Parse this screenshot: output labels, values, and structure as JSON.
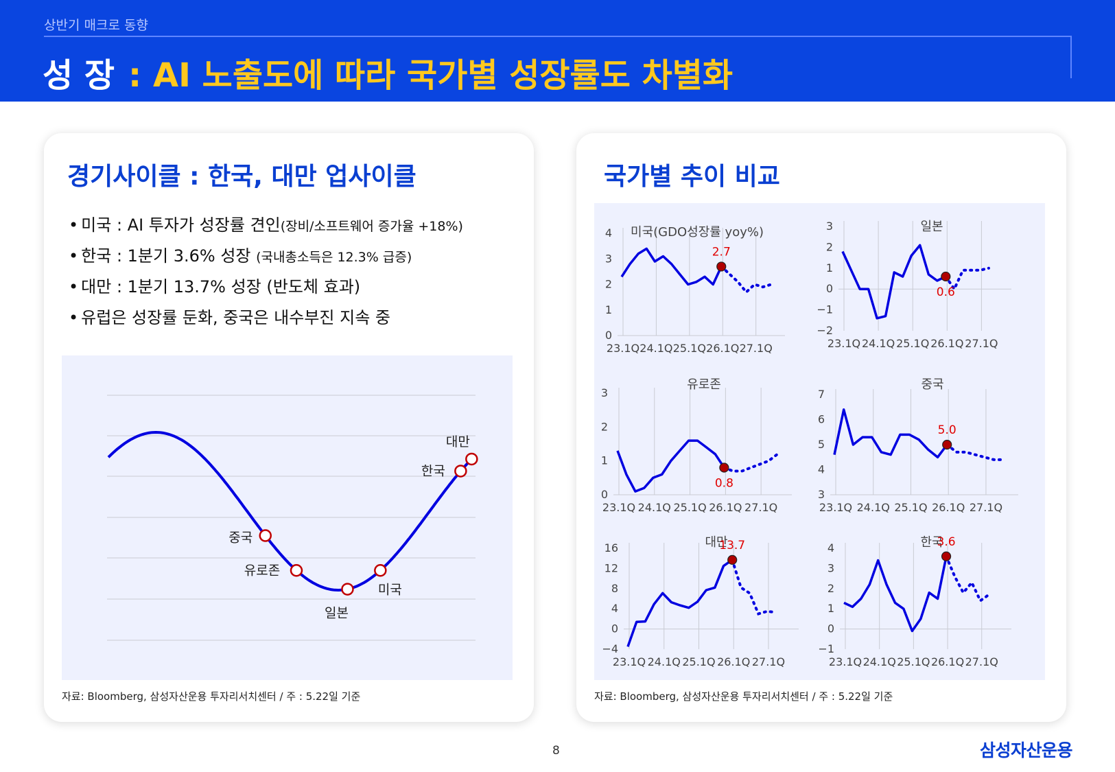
{
  "header": {
    "subtitle": "상반기 매크로 동향",
    "title_main": "성 장",
    "title_sub": ": AI 노출도에 따라 국가별 성장률도 차별화"
  },
  "left_card": {
    "title": "경기사이클 : 한국, 대만 업사이클",
    "bullets": [
      {
        "text": "미국 : AI 투자가 성장률 견인",
        "note": "(장비/소프트웨어 증가율 +18%)"
      },
      {
        "text": "한국 : 1분기 3.6% 성장",
        "note": "(국내총소득은 12.3% 급증)"
      },
      {
        "text": "대만 : 1분기 13.7% 성장 (반도체 효과)",
        "note": ""
      },
      {
        "text": "유럽은 성장률 둔화, 중국은 내수부진 지속 중",
        "note": ""
      }
    ],
    "source": "자료: Bloomberg, 삼성자산운용 투자리서치센터 / 주 : 5.22일 기준"
  },
  "right_card": {
    "title": "국가별 추이 비교",
    "source": "자료: Bloomberg, 삼성자산운용 투자리서치센터 / 주 : 5.22일 기준"
  },
  "footer": {
    "page": "8",
    "logo": "삼성자산운용"
  },
  "colors": {
    "header_bg": "#0a45e0",
    "title_accent": "#ffc81e",
    "line": "#0000e0",
    "marker": "#c00000",
    "panel_bg": "#eef1fe"
  },
  "chart_data": [
    {
      "type": "line",
      "title": "경기사이클",
      "description_curve": "business cycle sine curve",
      "points": [
        {
          "label": "중국",
          "phase": 0.43
        },
        {
          "label": "유로존",
          "phase": 0.515
        },
        {
          "label": "일본",
          "phase": 0.655
        },
        {
          "label": "미국",
          "phase": 0.745
        },
        {
          "label": "한국",
          "phase": 0.965
        },
        {
          "label": "대만",
          "phase": 0.995
        }
      ]
    },
    {
      "type": "line",
      "title": "미국(GDO성장률 yoy%)",
      "x_ticks": [
        "23.1Q",
        "24.1Q",
        "25.1Q",
        "26.1Q",
        "27.1Q"
      ],
      "ylim": [
        0,
        4
      ],
      "y_ticks": [
        0,
        1,
        2,
        3,
        4
      ],
      "actual": [
        2.3,
        2.8,
        3.2,
        3.4,
        2.9,
        3.1,
        2.8,
        2.4,
        2.0,
        2.1,
        2.3,
        2.0,
        2.7
      ],
      "forecast": [
        2.7,
        2.4,
        2.1,
        1.7,
        2.0,
        1.9,
        2.0
      ],
      "highlight": {
        "index": 12,
        "label": "2.7"
      }
    },
    {
      "type": "line",
      "title": "일본",
      "x_ticks": [
        "23.1Q",
        "24.1Q",
        "25.1Q",
        "26.1Q",
        "27.1Q"
      ],
      "ylim": [
        -2,
        3
      ],
      "y_ticks": [
        -2,
        -1,
        0,
        1,
        2,
        3
      ],
      "actual": [
        1.8,
        0.9,
        0.0,
        0.0,
        -1.4,
        -1.3,
        0.8,
        0.6,
        1.6,
        2.1,
        0.7,
        0.4,
        0.6
      ],
      "forecast": [
        0.6,
        0.0,
        0.9,
        0.9,
        0.9,
        1.0
      ],
      "highlight": {
        "index": 12,
        "label": "0.6"
      }
    },
    {
      "type": "line",
      "title": "유로존",
      "x_ticks": [
        "23.1Q",
        "24.1Q",
        "25.1Q",
        "26.1Q",
        "27.1Q"
      ],
      "ylim": [
        0,
        3
      ],
      "y_ticks": [
        0,
        1,
        2,
        3
      ],
      "actual": [
        1.3,
        0.6,
        0.1,
        0.2,
        0.5,
        0.6,
        1.0,
        1.3,
        1.6,
        1.6,
        1.4,
        1.2,
        0.8
      ],
      "forecast": [
        0.8,
        0.7,
        0.7,
        0.8,
        0.9,
        1.0,
        1.2
      ],
      "highlight": {
        "index": 12,
        "label": "0.8"
      }
    },
    {
      "type": "line",
      "title": "중국",
      "x_ticks": [
        "23.1Q",
        "24.1Q",
        "25.1Q",
        "26.1Q",
        "27.1Q"
      ],
      "ylim": [
        3,
        7
      ],
      "y_ticks": [
        3,
        4,
        5,
        6,
        7
      ],
      "actual": [
        4.6,
        6.4,
        5.0,
        5.3,
        5.3,
        4.7,
        4.6,
        5.4,
        5.4,
        5.2,
        4.8,
        4.5,
        5.0
      ],
      "forecast": [
        5.0,
        4.7,
        4.7,
        4.6,
        4.5,
        4.4,
        4.4
      ],
      "highlight": {
        "index": 12,
        "label": "5.0"
      }
    },
    {
      "type": "line",
      "title": "대만",
      "x_ticks": [
        "23.1Q",
        "24.1Q",
        "25.1Q",
        "26.1Q",
        "27.1Q"
      ],
      "ylim": [
        -4,
        16
      ],
      "y_ticks": [
        -4,
        0,
        4,
        8,
        12,
        16
      ],
      "actual": [
        -3.5,
        1.4,
        1.5,
        4.9,
        7.1,
        5.3,
        4.7,
        4.2,
        5.4,
        7.7,
        8.2,
        12.5,
        13.7
      ],
      "forecast": [
        13.7,
        8.2,
        7.1,
        3.0,
        3.5,
        3.3
      ],
      "highlight": {
        "index": 12,
        "label": "13.7"
      }
    },
    {
      "type": "line",
      "title": "한국",
      "x_ticks": [
        "23.1Q",
        "24.1Q",
        "25.1Q",
        "26.1Q",
        "27.1Q"
      ],
      "ylim": [
        -1,
        4
      ],
      "y_ticks": [
        -1,
        0,
        1,
        2,
        3,
        4
      ],
      "actual": [
        1.3,
        1.1,
        1.5,
        2.2,
        3.4,
        2.2,
        1.3,
        1.0,
        -0.1,
        0.5,
        1.8,
        1.5,
        3.6
      ],
      "forecast": [
        3.6,
        2.6,
        1.8,
        2.3,
        1.4,
        1.7
      ],
      "highlight": {
        "index": 12,
        "label": "3.6"
      }
    }
  ]
}
